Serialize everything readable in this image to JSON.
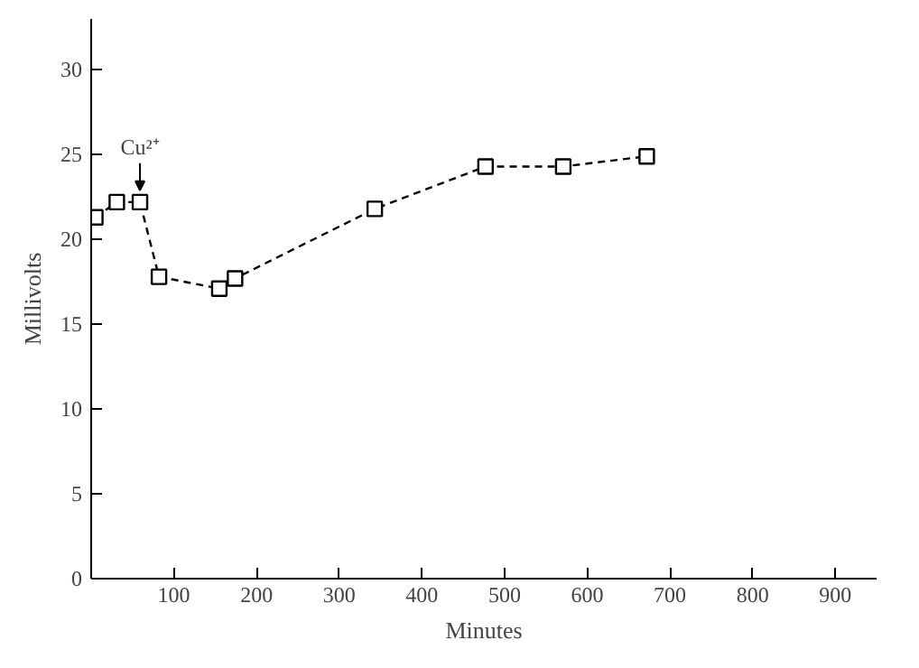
{
  "chart_data": {
    "type": "line",
    "xlabel": "Minutes",
    "ylabel": "Millivolts",
    "x": [
      5,
      31,
      59,
      82,
      155,
      174,
      343,
      477,
      571,
      672
    ],
    "series": [
      {
        "color": "#000000",
        "values": [
          21.3,
          22.2,
          22.2,
          17.8,
          17.1,
          17.7,
          21.8,
          24.3,
          24.3,
          24.9
        ]
      }
    ],
    "xlim": [
      0,
      950
    ],
    "xticks": [
      100,
      200,
      300,
      400,
      500,
      600,
      700,
      800,
      900
    ],
    "ylim": [
      0,
      33
    ],
    "yticks": [
      0,
      5,
      10,
      15,
      20,
      25,
      30
    ],
    "marker": "square",
    "line_style": "dashed",
    "annotations": [
      {
        "text": "Cu²⁺",
        "x": 59,
        "y": 22.2
      }
    ]
  }
}
